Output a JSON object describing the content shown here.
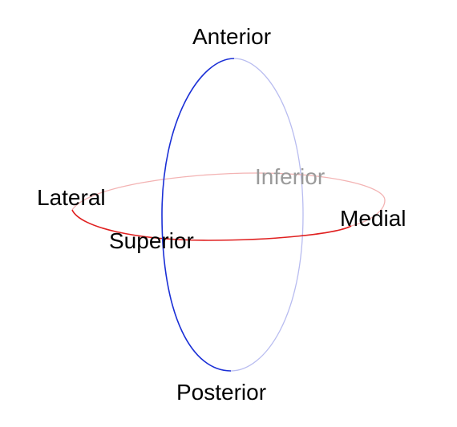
{
  "labels": {
    "anterior": "Anterior",
    "posterior": "Posterior",
    "lateral": "Lateral",
    "medial": "Medial",
    "superior": "Superior",
    "inferior": "Inferior"
  },
  "colors": {
    "sagittal_front": "#1a2fd6",
    "sagittal_back": "#b8bcf0",
    "transverse_front": "#e02020",
    "transverse_back": "#f3b3b3",
    "faded_label": "#9a9a9a",
    "label": "#000000"
  }
}
